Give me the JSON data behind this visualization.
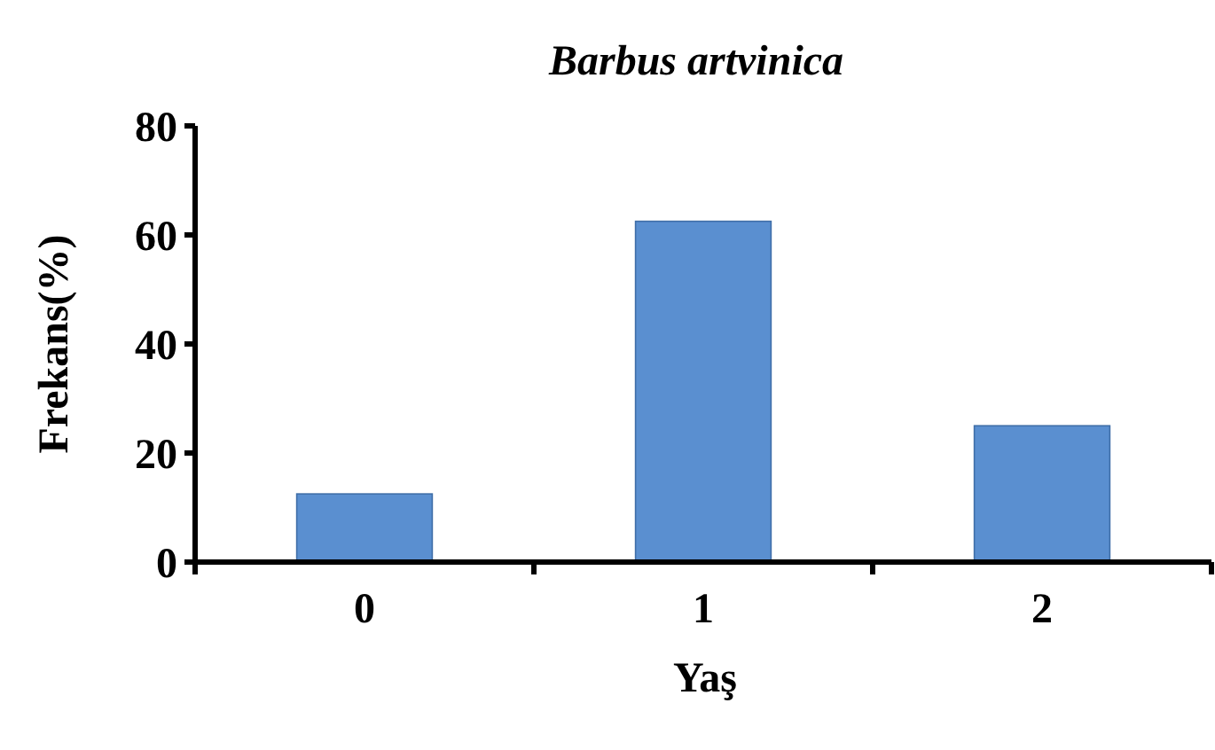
{
  "chart_data": {
    "type": "bar",
    "title": "Barbus artvinica",
    "xlabel": "Yaş",
    "ylabel": "Frekans(%)",
    "categories": [
      "0",
      "1",
      "2"
    ],
    "values": [
      12.5,
      62.5,
      25
    ],
    "color": "#5a8fd0",
    "ylim": [
      0,
      80
    ],
    "yticks": [
      0,
      20,
      40,
      60,
      80
    ],
    "grid": false
  }
}
